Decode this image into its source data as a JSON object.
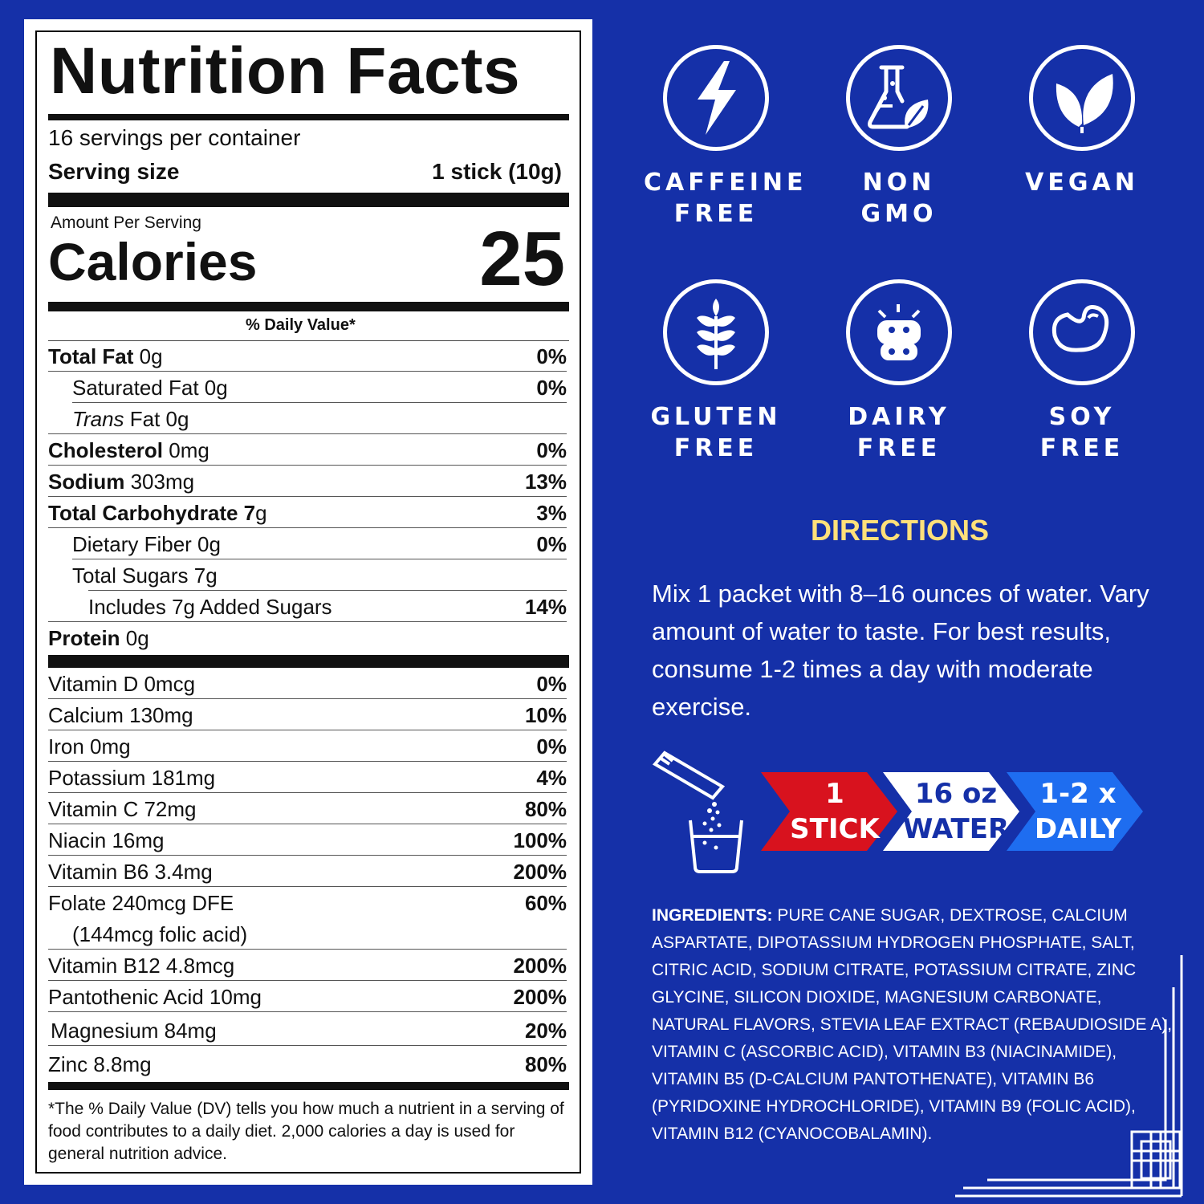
{
  "label": {
    "title": "Nutrition Facts",
    "servings": "16 servings per container",
    "serving_size_label": "Serving size",
    "serving_size_value": "1 stick (10g)",
    "amount_per_serving": "Amount Per Serving",
    "calories_label": "Calories",
    "calories_value": "25",
    "dv_header": "% Daily Value*",
    "nutrients": [
      {
        "name": "Total Fat",
        "amount": " 0g",
        "dv": "0%"
      },
      {
        "name": "Saturated Fat 0g",
        "amount": "",
        "dv": "0%"
      },
      {
        "name": "Trans",
        "amount": " Fat 0g",
        "dv": ""
      },
      {
        "name": "Cholesterol",
        "amount": " 0mg",
        "dv": "0%"
      },
      {
        "name": "Sodium",
        "amount": " 303mg",
        "dv": "13%"
      },
      {
        "name": "Total Carbohydrate 7",
        "amount": "g",
        "dv": "3%"
      },
      {
        "name": "Dietary Fiber 0g",
        "amount": "",
        "dv": "0%"
      },
      {
        "name": "Total Sugars 7g",
        "amount": "",
        "dv": ""
      },
      {
        "name": "Includes 7g Added Sugars",
        "amount": "",
        "dv": "14%"
      },
      {
        "name": "Protein",
        "amount": " 0g",
        "dv": ""
      }
    ],
    "vitamins": [
      {
        "name": "Vitamin D 0mcg",
        "dv": "0%"
      },
      {
        "name": "Calcium 130mg",
        "dv": "10%"
      },
      {
        "name": "Iron 0mg",
        "dv": "0%"
      },
      {
        "name": "Potassium 181mg",
        "dv": "4%"
      },
      {
        "name": "Vitamin C 72mg",
        "dv": "80%"
      },
      {
        "name": "Niacin 16mg",
        "dv": "100%"
      },
      {
        "name": "Vitamin B6 3.4mg",
        "dv": "200%"
      },
      {
        "name": "Folate 240mcg DFE",
        "dv": "60%"
      },
      {
        "name": "(144mcg folic acid)",
        "dv": ""
      },
      {
        "name": "Vitamin B12 4.8mcg",
        "dv": "200%"
      },
      {
        "name": "Pantothenic Acid 10mg",
        "dv": "200%"
      },
      {
        "name": "Magnesium 84mg",
        "dv": "20%"
      },
      {
        "name": "Zinc 8.8mg",
        "dv": "80%"
      }
    ],
    "footnote": "*The % Daily Value (DV) tells you how much a nutrient in a serving of food contributes to a daily diet. 2,000 calories a day is used for general nutrition advice."
  },
  "badges": [
    {
      "icon": "lightning-icon",
      "line1": "CAFFEINE",
      "line2": "FREE"
    },
    {
      "icon": "flask-leaf-icon",
      "line1": "NON",
      "line2": "GMO"
    },
    {
      "icon": "leaf-icon",
      "line1": "VEGAN",
      "line2": ""
    },
    {
      "icon": "wheat-icon",
      "line1": "GLUTEN",
      "line2": "FREE"
    },
    {
      "icon": "cow-icon",
      "line1": "DAIRY",
      "line2": "FREE"
    },
    {
      "icon": "bean-icon",
      "line1": "SOY",
      "line2": "FREE"
    }
  ],
  "directions": {
    "title": "DIRECTIONS",
    "text": "Mix 1 packet with 8–16 ounces of water. Vary amount of water to taste. For best results, consume 1-2 times a day with moderate exercise."
  },
  "steps": [
    {
      "line1": "1",
      "line2": "STICK",
      "color": "#d8121e",
      "text_color": "#ffffff"
    },
    {
      "line1": "16 oz",
      "line2": "WATER",
      "color": "#ffffff",
      "text_color": "#1530a8"
    },
    {
      "line1": "1-2 x",
      "line2": "DAILY",
      "color": "#1e6df0",
      "text_color": "#ffffff"
    }
  ],
  "ingredients": {
    "label": "INGREDIENTS:",
    "text": " PURE CANE SUGAR, DEXTROSE, CALCIUM ASPARTATE, DIPOTASSIUM HYDROGEN PHOSPHATE, SALT, CITRIC ACID, SODIUM CITRATE, POTASSIUM CITRATE, ZINC GLYCINE, SILICON DIOXIDE, MAGNESIUM CARBONATE, NATURAL FLAVORS, STEVIA LEAF EXTRACT (REBAUDIOSIDE A), VITAMIN C (ASCORBIC ACID), VITAMIN B3 (NIACINAMIDE), VITAMIN B5 (D-CALCIUM PANTOTHENATE), VITAMIN B6 (PYRIDOXINE HYDROCHLORIDE), VITAMIN B9 (FOLIC ACID), VITAMIN B12 (CYANOCOBALAMIN)."
  },
  "colors": {
    "background": "#1530a8",
    "directions_title": "#ffe07a"
  }
}
